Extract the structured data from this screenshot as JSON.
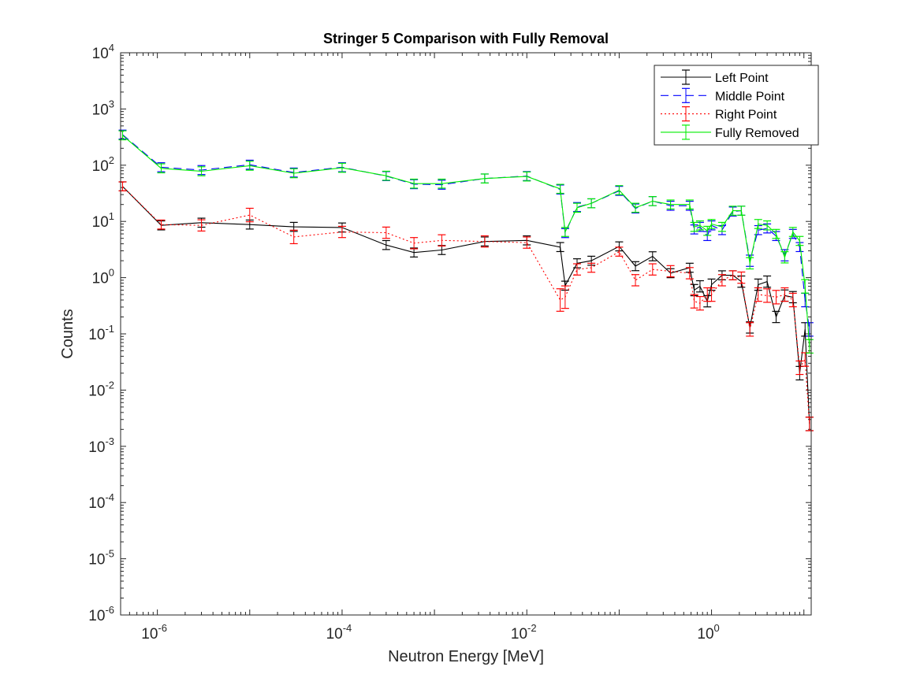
{
  "chart_data": {
    "type": "line",
    "title": "Stringer 5 Comparison with Fully Removal",
    "xlabel": "Neutron Energy [MeV]",
    "ylabel": "Counts",
    "xscale": "log",
    "yscale": "log",
    "xlim": [
      4e-07,
      12
    ],
    "ylim": [
      1e-06,
      10000
    ],
    "x_ticks": [
      {
        "value": 1e-06,
        "base": "10",
        "exp": "-6"
      },
      {
        "value": 0.0001,
        "base": "10",
        "exp": "-4"
      },
      {
        "value": 0.01,
        "base": "10",
        "exp": "-2"
      },
      {
        "value": 1,
        "base": "10",
        "exp": "0"
      }
    ],
    "y_ticks": [
      {
        "value": 1e-06,
        "base": "10",
        "exp": "-6"
      },
      {
        "value": 1e-05,
        "base": "10",
        "exp": "-5"
      },
      {
        "value": 0.0001,
        "base": "10",
        "exp": "-4"
      },
      {
        "value": 0.001,
        "base": "10",
        "exp": "-3"
      },
      {
        "value": 0.01,
        "base": "10",
        "exp": "-2"
      },
      {
        "value": 0.1,
        "base": "10",
        "exp": "-1"
      },
      {
        "value": 1,
        "base": "10",
        "exp": "0"
      },
      {
        "value": 10,
        "base": "10",
        "exp": "1"
      },
      {
        "value": 100,
        "base": "10",
        "exp": "2"
      },
      {
        "value": 1000,
        "base": "10",
        "exp": "3"
      },
      {
        "value": 10000,
        "base": "10",
        "exp": "4"
      }
    ],
    "grid": false,
    "legend_position": "top-right",
    "x": [
      4.2e-07,
      1.1e-06,
      3e-06,
      1e-05,
      3e-05,
      0.0001,
      0.0003,
      0.0006,
      0.0012,
      0.0035,
      0.01,
      0.023,
      0.026,
      0.035,
      0.05,
      0.1,
      0.15,
      0.23,
      0.36,
      0.58,
      0.65,
      0.75,
      0.9,
      1.0,
      1.3,
      1.7,
      2.1,
      2.6,
      3.2,
      4.0,
      5.0,
      6.2,
      7.6,
      9.0,
      10.3,
      11.5
    ],
    "series": [
      {
        "name": "Left Point",
        "color": "#000000",
        "dash": "",
        "values": [
          42,
          8.5,
          9.5,
          8.8,
          8.0,
          7.8,
          3.8,
          2.8,
          3.1,
          4.4,
          4.6,
          3.5,
          0.72,
          1.8,
          2.0,
          3.6,
          1.6,
          2.4,
          1.2,
          1.5,
          0.6,
          0.7,
          0.38,
          0.75,
          1.1,
          1.1,
          0.85,
          0.13,
          0.75,
          0.85,
          0.2,
          0.48,
          0.45,
          0.02,
          0.12,
          0.0025
        ],
        "err": [
          0.08,
          0.08,
          0.08,
          0.08,
          0.08,
          0.08,
          0.08,
          0.08,
          0.08,
          0.08,
          0.08,
          0.08,
          0.08,
          0.08,
          0.08,
          0.08,
          0.08,
          0.08,
          0.08,
          0.08,
          0.1,
          0.1,
          0.1,
          0.1,
          0.08,
          0.08,
          0.1,
          0.1,
          0.1,
          0.1,
          0.1,
          0.1,
          0.1,
          0.12,
          0.12,
          0.12
        ]
      },
      {
        "name": "Middle Point",
        "color": "#0000ff",
        "dash": "10,6",
        "values": [
          350,
          92,
          82,
          102,
          74,
          92,
          64,
          46,
          45,
          58,
          64,
          37,
          6.2,
          18,
          21,
          35,
          17,
          23,
          19,
          19,
          7.2,
          8.0,
          5.5,
          8.5,
          7.0,
          15,
          15.5,
          2.0,
          7.0,
          7.5,
          5.5,
          2.5,
          6.0,
          3.5,
          0.4,
          0.12
        ],
        "err": [
          0.08,
          0.08,
          0.08,
          0.08,
          0.08,
          0.08,
          0.08,
          0.08,
          0.08,
          0.08,
          0.08,
          0.08,
          0.08,
          0.08,
          0.08,
          0.08,
          0.08,
          0.08,
          0.08,
          0.08,
          0.08,
          0.08,
          0.08,
          0.08,
          0.08,
          0.08,
          0.08,
          0.1,
          0.08,
          0.08,
          0.08,
          0.1,
          0.08,
          0.08,
          0.12,
          0.12
        ]
      },
      {
        "name": "Right Point",
        "color": "#ff0000",
        "dash": "2,3",
        "values": [
          42,
          8.8,
          8.5,
          13,
          5.3,
          6.5,
          6.3,
          4.1,
          4.6,
          4.4,
          4.2,
          0.4,
          0.45,
          1.4,
          1.5,
          2.9,
          0.9,
          1.4,
          1.3,
          1.2,
          0.38,
          0.35,
          0.5,
          0.5,
          0.9,
          1.1,
          1.0,
          0.12,
          0.5,
          0.48,
          0.45,
          0.5,
          0.4,
          0.025,
          0.035,
          0.0025
        ],
        "err": [
          0.08,
          0.08,
          0.1,
          0.12,
          0.12,
          0.1,
          0.1,
          0.1,
          0.1,
          0.1,
          0.1,
          0.2,
          0.2,
          0.1,
          0.08,
          0.08,
          0.1,
          0.1,
          0.1,
          0.1,
          0.12,
          0.12,
          0.12,
          0.12,
          0.1,
          0.08,
          0.1,
          0.12,
          0.12,
          0.12,
          0.12,
          0.12,
          0.12,
          0.12,
          0.12,
          0.12
        ]
      },
      {
        "name": "Fully Removed",
        "color": "#00ee00",
        "dash": "",
        "values": [
          340,
          88,
          78,
          98,
          72,
          90,
          65,
          47,
          47,
          58,
          63,
          38,
          6.5,
          17.5,
          21,
          36,
          17.5,
          23,
          20,
          20,
          8.0,
          8.5,
          6.8,
          9.0,
          8.0,
          15.5,
          15.5,
          1.8,
          9.0,
          8.5,
          6.0,
          2.3,
          6.5,
          4.5,
          0.7,
          0.06
        ],
        "err": [
          0.08,
          0.08,
          0.08,
          0.08,
          0.08,
          0.08,
          0.08,
          0.08,
          0.08,
          0.08,
          0.08,
          0.08,
          0.08,
          0.08,
          0.08,
          0.08,
          0.08,
          0.08,
          0.08,
          0.08,
          0.08,
          0.08,
          0.08,
          0.08,
          0.08,
          0.08,
          0.08,
          0.1,
          0.08,
          0.08,
          0.08,
          0.1,
          0.08,
          0.08,
          0.12,
          0.12
        ]
      }
    ]
  }
}
